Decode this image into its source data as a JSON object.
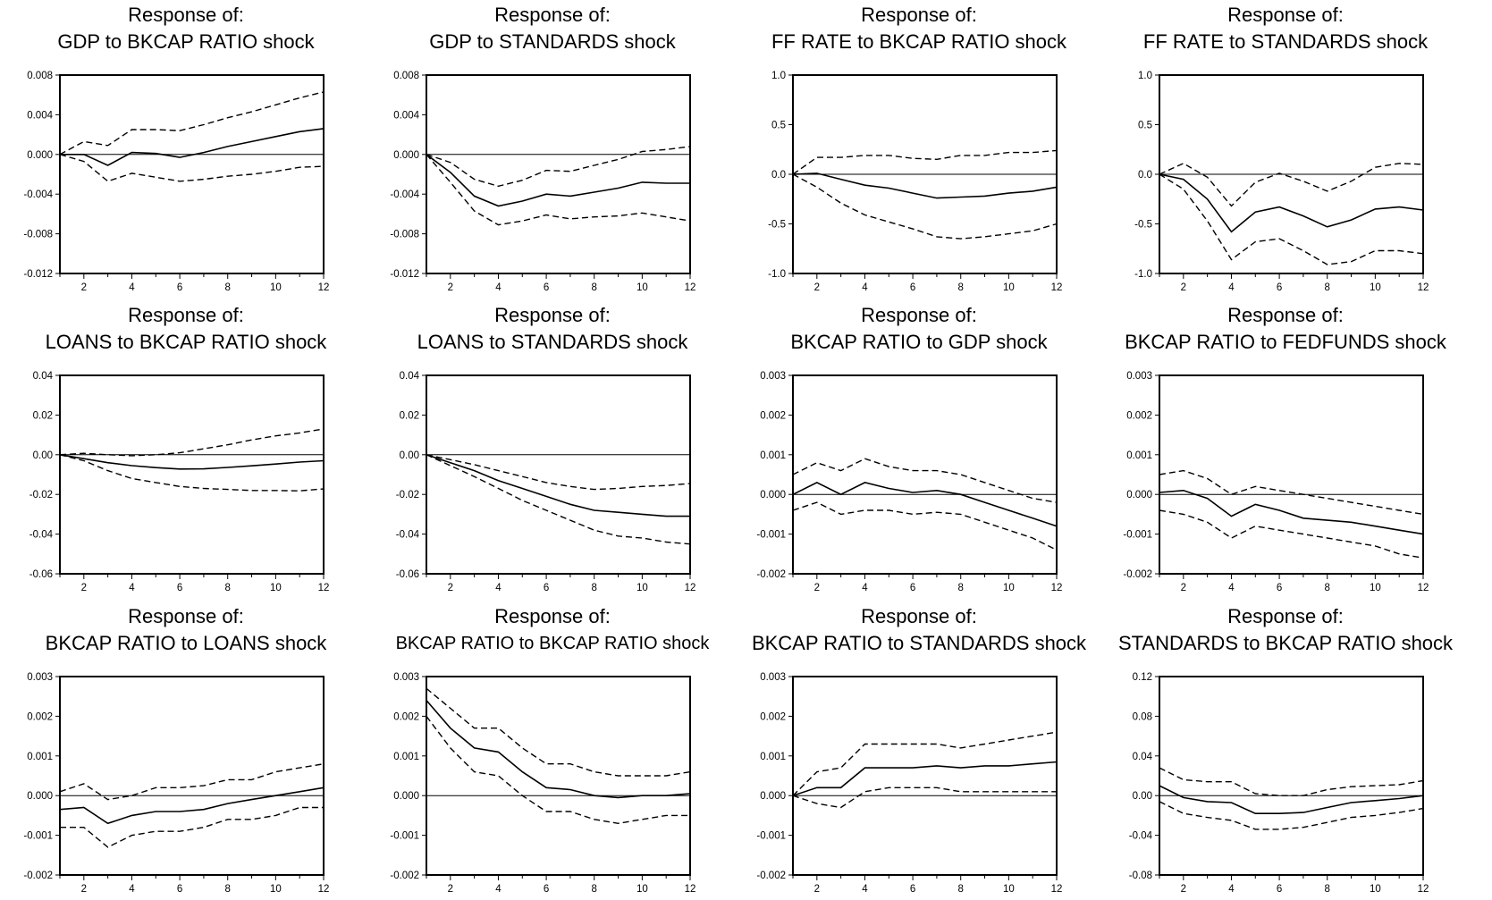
{
  "chart_data": [
    {
      "type": "line",
      "title": "Response of:",
      "subtitle": "GDP to BKCAP RATIO shock",
      "x": [
        1,
        2,
        3,
        4,
        5,
        6,
        7,
        8,
        9,
        10,
        11,
        12
      ],
      "xticks": [
        "2",
        "4",
        "6",
        "8",
        "10",
        "12"
      ],
      "ylim": [
        -0.012,
        0.008
      ],
      "yticks": [
        "0.008",
        "0.004",
        "0.000",
        "-0.004",
        "-0.008",
        "-0.012"
      ],
      "series": [
        {
          "role": "response",
          "values": [
            0.0,
            0.0,
            -0.0011,
            0.0002,
            0.0001,
            -0.0003,
            0.0002,
            0.0008,
            0.0013,
            0.0018,
            0.0023,
            0.0026
          ]
        },
        {
          "role": "upper",
          "values": [
            0.0,
            0.0013,
            0.0009,
            0.0025,
            0.0025,
            0.0024,
            0.003,
            0.0037,
            0.0043,
            0.005,
            0.0057,
            0.0063
          ]
        },
        {
          "role": "lower",
          "values": [
            0.0,
            -0.0007,
            -0.0027,
            -0.0019,
            -0.0023,
            -0.0027,
            -0.0025,
            -0.0022,
            -0.002,
            -0.0017,
            -0.0013,
            -0.0012
          ]
        }
      ]
    },
    {
      "type": "line",
      "title": "Response of:",
      "subtitle": "GDP to STANDARDS shock",
      "x": [
        1,
        2,
        3,
        4,
        5,
        6,
        7,
        8,
        9,
        10,
        11,
        12
      ],
      "xticks": [
        "2",
        "4",
        "6",
        "8",
        "10",
        "12"
      ],
      "ylim": [
        -0.012,
        0.008
      ],
      "yticks": [
        "0.008",
        "0.004",
        "0.000",
        "-0.004",
        "-0.008",
        "-0.012"
      ],
      "series": [
        {
          "role": "response",
          "values": [
            0.0,
            -0.0018,
            -0.0042,
            -0.0052,
            -0.0047,
            -0.004,
            -0.0042,
            -0.0038,
            -0.0034,
            -0.0028,
            -0.0029,
            -0.0029
          ]
        },
        {
          "role": "upper",
          "values": [
            0.0,
            -0.0008,
            -0.0025,
            -0.0032,
            -0.0026,
            -0.0016,
            -0.0017,
            -0.0011,
            -0.0005,
            0.0003,
            0.0005,
            0.0008
          ]
        },
        {
          "role": "lower",
          "values": [
            0.0,
            -0.0028,
            -0.0057,
            -0.0071,
            -0.0067,
            -0.0061,
            -0.0065,
            -0.0063,
            -0.0062,
            -0.0059,
            -0.0063,
            -0.0067
          ]
        }
      ]
    },
    {
      "type": "line",
      "title": "Response of:",
      "subtitle": "FF RATE to BKCAP RATIO shock",
      "x": [
        1,
        2,
        3,
        4,
        5,
        6,
        7,
        8,
        9,
        10,
        11,
        12
      ],
      "xticks": [
        "2",
        "4",
        "6",
        "8",
        "10",
        "12"
      ],
      "ylim": [
        -1.0,
        1.0
      ],
      "yticks": [
        "1.0",
        "0.5",
        "0.0",
        "-0.5",
        "-1.0"
      ],
      "series": [
        {
          "role": "response",
          "values": [
            0.0,
            0.01,
            -0.05,
            -0.11,
            -0.14,
            -0.19,
            -0.24,
            -0.23,
            -0.22,
            -0.19,
            -0.17,
            -0.13
          ]
        },
        {
          "role": "upper",
          "values": [
            0.0,
            0.17,
            0.17,
            0.19,
            0.19,
            0.16,
            0.15,
            0.19,
            0.19,
            0.22,
            0.22,
            0.24
          ]
        },
        {
          "role": "lower",
          "values": [
            0.0,
            -0.13,
            -0.29,
            -0.41,
            -0.48,
            -0.55,
            -0.63,
            -0.65,
            -0.63,
            -0.6,
            -0.57,
            -0.5
          ]
        }
      ]
    },
    {
      "type": "line",
      "title": "Response of:",
      "subtitle": "FF RATE to STANDARDS shock",
      "x": [
        1,
        2,
        3,
        4,
        5,
        6,
        7,
        8,
        9,
        10,
        11,
        12
      ],
      "xticks": [
        "2",
        "4",
        "6",
        "8",
        "10",
        "12"
      ],
      "ylim": [
        -1.0,
        1.0
      ],
      "yticks": [
        "1.0",
        "0.5",
        "0.0",
        "-0.5",
        "-1.0"
      ],
      "series": [
        {
          "role": "response",
          "values": [
            0.0,
            -0.05,
            -0.25,
            -0.58,
            -0.38,
            -0.33,
            -0.42,
            -0.53,
            -0.46,
            -0.35,
            -0.33,
            -0.36
          ]
        },
        {
          "role": "upper",
          "values": [
            0.0,
            0.11,
            -0.03,
            -0.32,
            -0.08,
            0.01,
            -0.07,
            -0.17,
            -0.07,
            0.07,
            0.11,
            0.1
          ]
        },
        {
          "role": "lower",
          "values": [
            0.0,
            -0.15,
            -0.47,
            -0.86,
            -0.68,
            -0.65,
            -0.77,
            -0.91,
            -0.88,
            -0.77,
            -0.77,
            -0.8
          ]
        }
      ]
    },
    {
      "type": "line",
      "title": "Response of:",
      "subtitle": "LOANS to BKCAP RATIO shock",
      "x": [
        1,
        2,
        3,
        4,
        5,
        6,
        7,
        8,
        9,
        10,
        11,
        12
      ],
      "xticks": [
        "2",
        "4",
        "6",
        "8",
        "10",
        "12"
      ],
      "ylim": [
        -0.06,
        0.04
      ],
      "yticks": [
        "0.04",
        "0.02",
        "0.00",
        "-0.02",
        "-0.04",
        "-0.06"
      ],
      "series": [
        {
          "role": "response",
          "values": [
            0.0,
            -0.002,
            -0.004,
            -0.0055,
            -0.0065,
            -0.0072,
            -0.0071,
            -0.0064,
            -0.0056,
            -0.0047,
            -0.0037,
            -0.003
          ]
        },
        {
          "role": "upper",
          "values": [
            0.0,
            0.0007,
            0.0,
            -0.0005,
            0.0,
            0.001,
            0.003,
            0.005,
            0.0075,
            0.0095,
            0.011,
            0.013
          ]
        },
        {
          "role": "lower",
          "values": [
            0.0,
            -0.003,
            -0.008,
            -0.012,
            -0.014,
            -0.016,
            -0.017,
            -0.0175,
            -0.018,
            -0.018,
            -0.0182,
            -0.0172
          ]
        }
      ]
    },
    {
      "type": "line",
      "title": "Response of:",
      "subtitle": "LOANS to STANDARDS shock",
      "x": [
        1,
        2,
        3,
        4,
        5,
        6,
        7,
        8,
        9,
        10,
        11,
        12
      ],
      "xticks": [
        "2",
        "4",
        "6",
        "8",
        "10",
        "12"
      ],
      "ylim": [
        -0.06,
        0.04
      ],
      "yticks": [
        "0.04",
        "0.02",
        "0.00",
        "-0.02",
        "-0.04",
        "-0.06"
      ],
      "series": [
        {
          "role": "response",
          "values": [
            0.0,
            -0.004,
            -0.008,
            -0.013,
            -0.017,
            -0.021,
            -0.025,
            -0.028,
            -0.029,
            -0.03,
            -0.031,
            -0.031
          ]
        },
        {
          "role": "upper",
          "values": [
            0.0,
            -0.0025,
            -0.005,
            -0.008,
            -0.011,
            -0.014,
            -0.016,
            -0.0175,
            -0.017,
            -0.016,
            -0.0155,
            -0.0145
          ]
        },
        {
          "role": "lower",
          "values": [
            0.0,
            -0.0055,
            -0.011,
            -0.017,
            -0.023,
            -0.028,
            -0.033,
            -0.038,
            -0.041,
            -0.042,
            -0.044,
            -0.045
          ]
        }
      ]
    },
    {
      "type": "line",
      "title": "Response of:",
      "subtitle": "BKCAP RATIO to GDP shock",
      "x": [
        1,
        2,
        3,
        4,
        5,
        6,
        7,
        8,
        9,
        10,
        11,
        12
      ],
      "xticks": [
        "2",
        "4",
        "6",
        "8",
        "10",
        "12"
      ],
      "ylim": [
        -0.002,
        0.003
      ],
      "yticks": [
        "0.003",
        "0.002",
        "0.001",
        "0.000",
        "-0.001",
        "-0.002"
      ],
      "series": [
        {
          "role": "response",
          "values": [
            0.0,
            0.0003,
            0.0,
            0.0003,
            0.00015,
            5e-05,
            0.0001,
            0.0,
            -0.0002,
            -0.0004,
            -0.0006,
            -0.0008
          ]
        },
        {
          "role": "upper",
          "values": [
            0.0005,
            0.0008,
            0.0006,
            0.0009,
            0.0007,
            0.0006,
            0.0006,
            0.0005,
            0.0003,
            0.0001,
            -0.0001,
            -0.0002
          ]
        },
        {
          "role": "lower",
          "values": [
            -0.0004,
            -0.0002,
            -0.0005,
            -0.0004,
            -0.0004,
            -0.0005,
            -0.00045,
            -0.0005,
            -0.0007,
            -0.0009,
            -0.0011,
            -0.0014
          ]
        }
      ]
    },
    {
      "type": "line",
      "title": "Response of:",
      "subtitle": "BKCAP RATIO to FEDFUNDS shock",
      "x": [
        1,
        2,
        3,
        4,
        5,
        6,
        7,
        8,
        9,
        10,
        11,
        12
      ],
      "xticks": [
        "2",
        "4",
        "6",
        "8",
        "10",
        "12"
      ],
      "ylim": [
        -0.002,
        0.003
      ],
      "yticks": [
        "0.003",
        "0.002",
        "0.001",
        "0.000",
        "-0.001",
        "-0.002"
      ],
      "series": [
        {
          "role": "response",
          "values": [
            5e-05,
            0.0001,
            -0.0001,
            -0.00055,
            -0.00025,
            -0.0004,
            -0.0006,
            -0.00065,
            -0.0007,
            -0.0008,
            -0.0009,
            -0.001
          ]
        },
        {
          "role": "upper",
          "values": [
            0.0005,
            0.0006,
            0.0004,
            0.0,
            0.0002,
            0.0001,
            0.0,
            -0.0001,
            -0.0002,
            -0.0003,
            -0.0004,
            -0.0005
          ]
        },
        {
          "role": "lower",
          "values": [
            -0.0004,
            -0.0005,
            -0.0007,
            -0.0011,
            -0.0008,
            -0.0009,
            -0.001,
            -0.0011,
            -0.0012,
            -0.0013,
            -0.0015,
            -0.0016
          ]
        }
      ]
    },
    {
      "type": "line",
      "title": "Response of:",
      "subtitle": "BKCAP RATIO to LOANS shock",
      "x": [
        1,
        2,
        3,
        4,
        5,
        6,
        7,
        8,
        9,
        10,
        11,
        12
      ],
      "xticks": [
        "2",
        "4",
        "6",
        "8",
        "10",
        "12"
      ],
      "ylim": [
        -0.002,
        0.003
      ],
      "yticks": [
        "0.003",
        "0.002",
        "0.001",
        "0.000",
        "-0.001",
        "-0.002"
      ],
      "series": [
        {
          "role": "response",
          "values": [
            -0.00035,
            -0.0003,
            -0.0007,
            -0.0005,
            -0.0004,
            -0.0004,
            -0.00035,
            -0.0002,
            -0.0001,
            0.0,
            0.0001,
            0.0002
          ]
        },
        {
          "role": "upper",
          "values": [
            0.0001,
            0.0003,
            -0.0001,
            0.0,
            0.0002,
            0.0002,
            0.00025,
            0.0004,
            0.0004,
            0.0006,
            0.0007,
            0.0008
          ]
        },
        {
          "role": "lower",
          "values": [
            -0.0008,
            -0.0008,
            -0.0013,
            -0.001,
            -0.0009,
            -0.0009,
            -0.0008,
            -0.0006,
            -0.0006,
            -0.0005,
            -0.0003,
            -0.0003
          ]
        }
      ]
    },
    {
      "type": "line",
      "title": "Response of:",
      "subtitle": "BKCAP RATIO to BKCAP RATIO shock",
      "x": [
        1,
        2,
        3,
        4,
        5,
        6,
        7,
        8,
        9,
        10,
        11,
        12
      ],
      "xticks": [
        "2",
        "4",
        "6",
        "8",
        "10",
        "12"
      ],
      "ylim": [
        -0.002,
        0.003
      ],
      "yticks": [
        "0.003",
        "0.002",
        "0.001",
        "0.000",
        "-0.001",
        "-0.002"
      ],
      "series": [
        {
          "role": "response",
          "values": [
            0.0024,
            0.0017,
            0.0012,
            0.0011,
            0.0006,
            0.0002,
            0.00015,
            0.0,
            -5e-05,
            0.0,
            0.0,
            5e-05
          ]
        },
        {
          "role": "upper",
          "values": [
            0.0027,
            0.0022,
            0.0017,
            0.0017,
            0.0012,
            0.0008,
            0.0008,
            0.0006,
            0.0005,
            0.0005,
            0.0005,
            0.0006
          ]
        },
        {
          "role": "lower",
          "values": [
            0.002,
            0.0012,
            0.0006,
            0.0005,
            0.0,
            -0.0004,
            -0.0004,
            -0.0006,
            -0.0007,
            -0.0006,
            -0.0005,
            -0.0005
          ]
        }
      ]
    },
    {
      "type": "line",
      "title": "Response of:",
      "subtitle": "BKCAP RATIO to STANDARDS shock",
      "x": [
        1,
        2,
        3,
        4,
        5,
        6,
        7,
        8,
        9,
        10,
        11,
        12
      ],
      "xticks": [
        "2",
        "4",
        "6",
        "8",
        "10",
        "12"
      ],
      "ylim": [
        -0.002,
        0.003
      ],
      "yticks": [
        "0.003",
        "0.002",
        "0.001",
        "0.000",
        "-0.001",
        "-0.002"
      ],
      "series": [
        {
          "role": "response",
          "values": [
            0.0,
            0.0002,
            0.0002,
            0.0007,
            0.0007,
            0.0007,
            0.00075,
            0.0007,
            0.00075,
            0.00075,
            0.0008,
            0.00085
          ]
        },
        {
          "role": "upper",
          "values": [
            0.0,
            0.0006,
            0.0007,
            0.0013,
            0.0013,
            0.0013,
            0.0013,
            0.0012,
            0.0013,
            0.0014,
            0.0015,
            0.0016
          ]
        },
        {
          "role": "lower",
          "values": [
            0.0,
            -0.0002,
            -0.0003,
            0.0001,
            0.0002,
            0.0002,
            0.0002,
            0.0001,
            0.0001,
            0.0001,
            0.0001,
            0.0001
          ]
        }
      ]
    },
    {
      "type": "line",
      "title": "Response of:",
      "subtitle": "STANDARDS to BKCAP RATIO shock",
      "x": [
        1,
        2,
        3,
        4,
        5,
        6,
        7,
        8,
        9,
        10,
        11,
        12
      ],
      "xticks": [
        "2",
        "4",
        "6",
        "8",
        "10",
        "12"
      ],
      "ylim": [
        -0.08,
        0.12
      ],
      "yticks": [
        "0.12",
        "0.08",
        "0.04",
        "0.00",
        "-0.04",
        "-0.08"
      ],
      "series": [
        {
          "role": "response",
          "values": [
            0.01,
            -0.002,
            -0.006,
            -0.007,
            -0.018,
            -0.018,
            -0.017,
            -0.012,
            -0.007,
            -0.005,
            -0.003,
            0.0
          ]
        },
        {
          "role": "upper",
          "values": [
            0.028,
            0.016,
            0.014,
            0.014,
            0.002,
            0.0,
            0.0,
            0.006,
            0.009,
            0.01,
            0.011,
            0.015
          ]
        },
        {
          "role": "lower",
          "values": [
            -0.006,
            -0.018,
            -0.022,
            -0.025,
            -0.034,
            -0.034,
            -0.032,
            -0.027,
            -0.022,
            -0.02,
            -0.017,
            -0.013
          ]
        }
      ]
    }
  ]
}
